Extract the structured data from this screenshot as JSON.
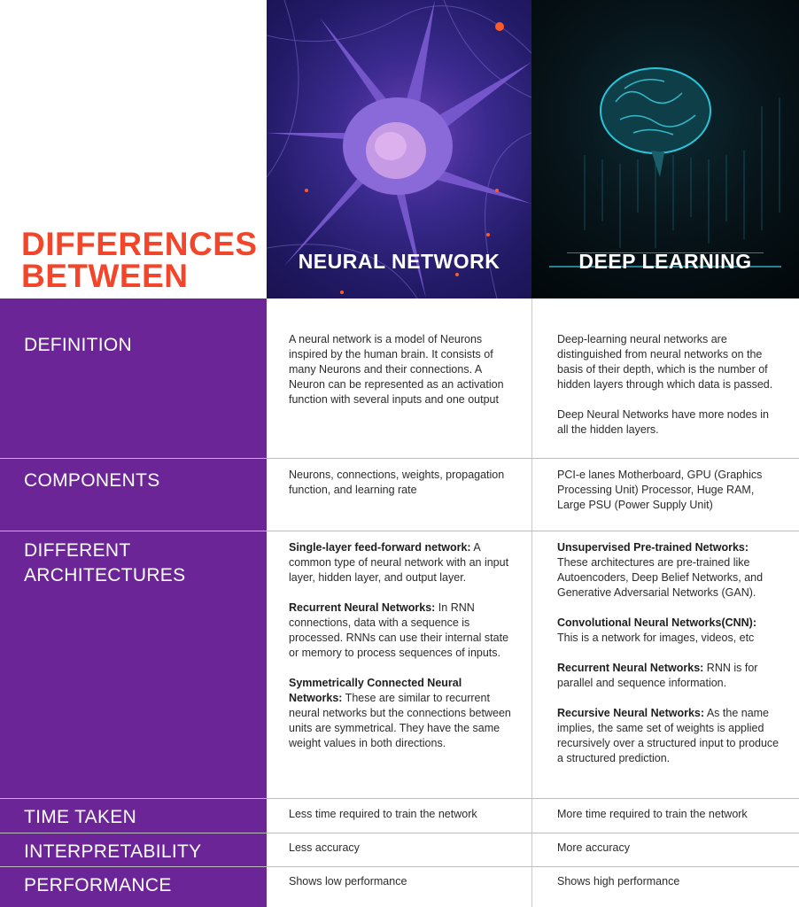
{
  "header": {
    "title_line1": "DIFFERENCES",
    "title_line2": "BETWEEN",
    "col1": "NEURAL NETWORK",
    "col2": "DEEP LEARNING"
  },
  "colors": {
    "accent_orange": "#f2452a",
    "label_purple": "#6c2596"
  },
  "rows": [
    {
      "label": "DEFINITION",
      "nn": [
        {
          "bold": "",
          "text": "A neural network is a model of Neurons inspired by the human brain. It consists of many Neurons and their connections. A Neuron can be represented as an activation function with several inputs and one output"
        }
      ],
      "dl": [
        {
          "bold": "",
          "text": "Deep-learning neural networks are distinguished from neural networks on the basis of their depth, which is the number of hidden layers through which data is passed."
        },
        {
          "bold": "",
          "text": "Deep Neural Networks have more nodes in all the hidden layers."
        }
      ]
    },
    {
      "label": "COMPONENTS",
      "nn": [
        {
          "bold": "",
          "text": "Neurons, connections, weights, propagation function, and learning rate"
        }
      ],
      "dl": [
        {
          "bold": "",
          "text": "PCI-e lanes Motherboard, GPU (Graphics Processing Unit) Processor, Huge RAM, Large PSU (Power Supply Unit)"
        }
      ]
    },
    {
      "label_line1": "DIFFERENT",
      "label_line2": "ARCHITECTURES",
      "nn": [
        {
          "bold": "Single-layer feed-forward network:",
          "text": " A common type of neural network with an input layer, hidden layer, and output layer."
        },
        {
          "bold": "Recurrent Neural Networks:",
          "text": " In RNN connections, data with a sequence is processed. RNNs can use their internal state or memory to process sequences of inputs."
        },
        {
          "bold": "Symmetrically Connected Neural Networks:",
          "text": " These are similar to recurrent neural networks but the connections between units are symmetrical. They have the same weight values in both directions."
        }
      ],
      "dl": [
        {
          "bold": "Unsupervised Pre-trained Networks:",
          "text": " These architectures are pre-trained like Autoencoders, Deep Belief Networks, and Generative Adversarial Networks (GAN)."
        },
        {
          "bold": "Convolutional Neural Networks(CNN):",
          "text": " This is a network for images, videos, etc"
        },
        {
          "bold": "Recurrent Neural Networks:",
          "text": " RNN is for parallel and sequence information."
        },
        {
          "bold": "Recursive Neural Networks:",
          "text": " As the name implies, the same set of weights is applied recursively over a structured input to produce a structured prediction."
        }
      ]
    },
    {
      "label": "TIME TAKEN",
      "nn": [
        {
          "bold": "",
          "text": "Less time required to train the network"
        }
      ],
      "dl": [
        {
          "bold": "",
          "text": "More time required to train the network"
        }
      ]
    },
    {
      "label": "INTERPRETABILITY",
      "nn": [
        {
          "bold": "",
          "text": "Less accuracy"
        }
      ],
      "dl": [
        {
          "bold": "",
          "text": "More accuracy"
        }
      ]
    },
    {
      "label": "PERFORMANCE",
      "nn": [
        {
          "bold": "",
          "text": "Shows low performance"
        }
      ],
      "dl": [
        {
          "bold": "",
          "text": "Shows high performance"
        }
      ]
    }
  ]
}
